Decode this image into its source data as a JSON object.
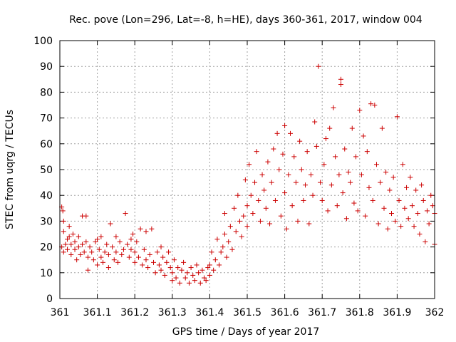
{
  "colors": {
    "series": "#cc0000",
    "background": "#ffffff",
    "axis": "#000000",
    "grid": "#a0a0a0"
  },
  "chart_data": {
    "type": "scatter",
    "title": "Rec. pove (Lon=296, Lat=-8, h=HE), days 360-361, 2017, window 004",
    "xlabel": "GPS time / Days of year 2017",
    "ylabel": "STEC from uqrg / TECUs",
    "xlim": [
      361,
      362
    ],
    "ylim": [
      0,
      100
    ],
    "x_ticks": [
      361,
      361.1,
      361.2,
      361.3,
      361.4,
      361.5,
      361.6,
      361.7,
      361.8,
      361.9,
      362
    ],
    "x_tick_labels": [
      "361",
      "361.1",
      "361.2",
      "361.3",
      "361.4",
      "361.5",
      "361.6",
      "361.7",
      "361.8",
      "361.9",
      "362"
    ],
    "y_ticks": [
      0,
      10,
      20,
      30,
      40,
      50,
      60,
      70,
      80,
      90,
      100
    ],
    "y_tick_labels": [
      "0",
      "10",
      "20",
      "30",
      "40",
      "50",
      "60",
      "70",
      "80",
      "90",
      "100"
    ],
    "grid": true,
    "marker": "plus",
    "series": [
      {
        "points": [
          [
            361.005,
            35.5
          ],
          [
            361.008,
            34
          ],
          [
            361.01,
            30
          ],
          [
            361.01,
            26
          ],
          [
            361.005,
            20
          ],
          [
            361.01,
            18
          ],
          [
            361.015,
            21
          ],
          [
            361.02,
            23
          ],
          [
            361.02,
            19
          ],
          [
            361.025,
            28
          ],
          [
            361.025,
            24
          ],
          [
            361.03,
            21
          ],
          [
            361.03,
            17
          ],
          [
            361.035,
            25
          ],
          [
            361.04,
            22
          ],
          [
            361.04,
            19
          ],
          [
            361.045,
            15
          ],
          [
            361.05,
            24
          ],
          [
            361.05,
            20
          ],
          [
            361.055,
            17
          ],
          [
            361.06,
            32
          ],
          [
            361.06,
            21
          ],
          [
            361.065,
            18
          ],
          [
            361.07,
            22
          ],
          [
            361.07,
            32
          ],
          [
            361.075,
            16
          ],
          [
            361.075,
            11
          ],
          [
            361.08,
            20
          ],
          [
            361.085,
            18
          ],
          [
            361.09,
            15
          ],
          [
            361.095,
            22
          ],
          [
            361.1,
            13
          ],
          [
            361.1,
            23
          ],
          [
            361.105,
            19
          ],
          [
            361.11,
            16
          ],
          [
            361.11,
            24
          ],
          [
            361.115,
            14
          ],
          [
            361.12,
            18
          ],
          [
            361.125,
            21
          ],
          [
            361.13,
            12
          ],
          [
            361.13,
            17
          ],
          [
            361.135,
            29
          ],
          [
            361.14,
            20
          ],
          [
            361.145,
            15
          ],
          [
            361.15,
            24
          ],
          [
            361.15,
            18
          ],
          [
            361.155,
            14
          ],
          [
            361.16,
            22
          ],
          [
            361.165,
            17
          ],
          [
            361.17,
            19
          ],
          [
            361.175,
            33
          ],
          [
            361.18,
            21
          ],
          [
            361.185,
            16
          ],
          [
            361.19,
            23
          ],
          [
            361.19,
            19
          ],
          [
            361.195,
            25
          ],
          [
            361.2,
            18
          ],
          [
            361.2,
            14
          ],
          [
            361.205,
            22
          ],
          [
            361.21,
            16
          ],
          [
            361.215,
            27
          ],
          [
            361.22,
            13
          ],
          [
            361.225,
            19
          ],
          [
            361.23,
            15
          ],
          [
            361.23,
            26
          ],
          [
            361.235,
            12
          ],
          [
            361.24,
            17
          ],
          [
            361.245,
            27
          ],
          [
            361.25,
            14
          ],
          [
            361.255,
            10
          ],
          [
            361.26,
            18
          ],
          [
            361.265,
            13
          ],
          [
            361.27,
            20
          ],
          [
            361.27,
            11
          ],
          [
            361.275,
            16
          ],
          [
            361.28,
            9
          ],
          [
            361.285,
            14
          ],
          [
            361.29,
            18
          ],
          [
            361.295,
            12
          ],
          [
            361.3,
            7
          ],
          [
            361.3,
            10
          ],
          [
            361.305,
            15
          ],
          [
            361.31,
            8
          ],
          [
            361.315,
            12
          ],
          [
            361.32,
            6
          ],
          [
            361.325,
            11
          ],
          [
            361.33,
            14
          ],
          [
            361.335,
            8
          ],
          [
            361.34,
            10
          ],
          [
            361.345,
            6
          ],
          [
            361.35,
            12
          ],
          [
            361.355,
            9
          ],
          [
            361.36,
            7
          ],
          [
            361.365,
            13
          ],
          [
            361.37,
            10
          ],
          [
            361.375,
            6
          ],
          [
            361.38,
            11
          ],
          [
            361.385,
            8
          ],
          [
            361.39,
            7
          ],
          [
            361.395,
            12
          ],
          [
            361.4,
            9
          ],
          [
            361.4,
            13
          ],
          [
            361.405,
            18
          ],
          [
            361.41,
            11
          ],
          [
            361.415,
            15
          ],
          [
            361.42,
            23
          ],
          [
            361.425,
            13
          ],
          [
            361.43,
            18
          ],
          [
            361.435,
            20
          ],
          [
            361.44,
            33
          ],
          [
            361.44,
            25
          ],
          [
            361.445,
            16
          ],
          [
            361.45,
            22
          ],
          [
            361.455,
            28
          ],
          [
            361.46,
            19
          ],
          [
            361.465,
            35
          ],
          [
            361.47,
            26
          ],
          [
            361.475,
            40
          ],
          [
            361.48,
            30
          ],
          [
            361.485,
            24
          ],
          [
            361.49,
            32
          ],
          [
            361.495,
            46
          ],
          [
            361.5,
            36
          ],
          [
            361.5,
            28
          ],
          [
            361.505,
            52
          ],
          [
            361.51,
            40
          ],
          [
            361.515,
            33
          ],
          [
            361.52,
            45
          ],
          [
            361.525,
            57
          ],
          [
            361.53,
            38
          ],
          [
            361.535,
            30
          ],
          [
            361.54,
            48
          ],
          [
            361.545,
            42
          ],
          [
            361.55,
            35
          ],
          [
            361.555,
            53
          ],
          [
            361.56,
            29
          ],
          [
            361.565,
            45
          ],
          [
            361.57,
            58
          ],
          [
            361.575,
            38
          ],
          [
            361.58,
            64
          ],
          [
            361.585,
            50
          ],
          [
            361.59,
            32
          ],
          [
            361.595,
            56
          ],
          [
            361.6,
            67
          ],
          [
            361.6,
            41
          ],
          [
            361.605,
            27
          ],
          [
            361.61,
            48
          ],
          [
            361.615,
            64
          ],
          [
            361.62,
            36
          ],
          [
            361.625,
            55
          ],
          [
            361.63,
            45
          ],
          [
            361.635,
            30
          ],
          [
            361.64,
            61
          ],
          [
            361.645,
            50
          ],
          [
            361.65,
            38
          ],
          [
            361.655,
            44
          ],
          [
            361.66,
            57
          ],
          [
            361.665,
            29
          ],
          [
            361.67,
            48
          ],
          [
            361.675,
            40
          ],
          [
            361.68,
            68.5
          ],
          [
            361.685,
            59
          ],
          [
            361.69,
            90
          ],
          [
            361.695,
            45
          ],
          [
            361.7,
            38
          ],
          [
            361.705,
            52
          ],
          [
            361.71,
            62
          ],
          [
            361.715,
            34
          ],
          [
            361.72,
            66
          ],
          [
            361.725,
            44
          ],
          [
            361.73,
            74
          ],
          [
            361.735,
            55
          ],
          [
            361.74,
            36
          ],
          [
            361.745,
            48
          ],
          [
            361.75,
            85
          ],
          [
            361.75,
            83
          ],
          [
            361.755,
            41
          ],
          [
            361.76,
            58
          ],
          [
            361.765,
            31
          ],
          [
            361.77,
            49
          ],
          [
            361.775,
            45
          ],
          [
            361.78,
            66
          ],
          [
            361.785,
            37
          ],
          [
            361.79,
            55
          ],
          [
            361.795,
            34
          ],
          [
            361.8,
            73
          ],
          [
            361.805,
            48
          ],
          [
            361.81,
            63
          ],
          [
            361.815,
            32
          ],
          [
            361.82,
            57
          ],
          [
            361.825,
            43
          ],
          [
            361.83,
            75.5
          ],
          [
            361.835,
            38
          ],
          [
            361.84,
            75
          ],
          [
            361.845,
            52
          ],
          [
            361.85,
            29
          ],
          [
            361.855,
            45
          ],
          [
            361.86,
            66
          ],
          [
            361.865,
            35
          ],
          [
            361.87,
            49
          ],
          [
            361.875,
            27
          ],
          [
            361.88,
            42
          ],
          [
            361.885,
            33
          ],
          [
            361.89,
            47
          ],
          [
            361.895,
            30
          ],
          [
            361.9,
            70.5
          ],
          [
            361.905,
            38
          ],
          [
            361.91,
            28
          ],
          [
            361.915,
            52
          ],
          [
            361.92,
            35
          ],
          [
            361.925,
            43
          ],
          [
            361.93,
            31
          ],
          [
            361.935,
            47
          ],
          [
            361.94,
            36
          ],
          [
            361.945,
            28
          ],
          [
            361.95,
            42
          ],
          [
            361.955,
            33
          ],
          [
            361.96,
            25
          ],
          [
            361.965,
            44
          ],
          [
            361.97,
            38
          ],
          [
            361.975,
            22
          ],
          [
            361.98,
            34
          ],
          [
            361.985,
            29
          ],
          [
            361.99,
            40
          ],
          [
            361.995,
            36
          ],
          [
            362,
            21
          ],
          [
            362,
            33
          ]
        ]
      }
    ]
  }
}
